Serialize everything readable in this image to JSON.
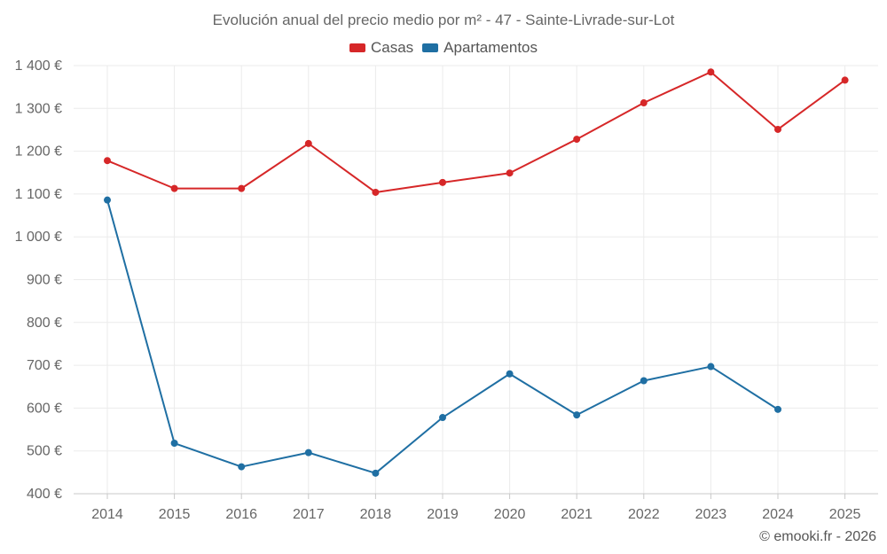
{
  "chart_data": {
    "type": "line",
    "title": "Evolución anual del precio medio por m² - 47 - Sainte-Livrade-sur-Lot",
    "categories": [
      "2014",
      "2015",
      "2016",
      "2017",
      "2018",
      "2019",
      "2020",
      "2021",
      "2022",
      "2023",
      "2024",
      "2025"
    ],
    "series": [
      {
        "name": "Casas",
        "color": "#d62728",
        "values": [
          1178,
          1113,
          1113,
          1218,
          1104,
          1127,
          1149,
          1228,
          1313,
          1385,
          1251,
          1366
        ]
      },
      {
        "name": "Apartamentos",
        "color": "#1f6fa3",
        "values": [
          1086,
          518,
          463,
          496,
          448,
          578,
          680,
          584,
          664,
          697,
          597,
          null
        ]
      }
    ],
    "ylim": [
      400,
      1400
    ],
    "yticks": [
      "400 €",
      "500 €",
      "600 €",
      "700 €",
      "800 €",
      "900 €",
      "1 000 €",
      "1 100 €",
      "1 200 €",
      "1 300 €",
      "1 400 €"
    ],
    "xlabel": "",
    "ylabel": "",
    "grid": true,
    "legend": "top-center"
  },
  "credit": "© emooki.fr - 2026"
}
